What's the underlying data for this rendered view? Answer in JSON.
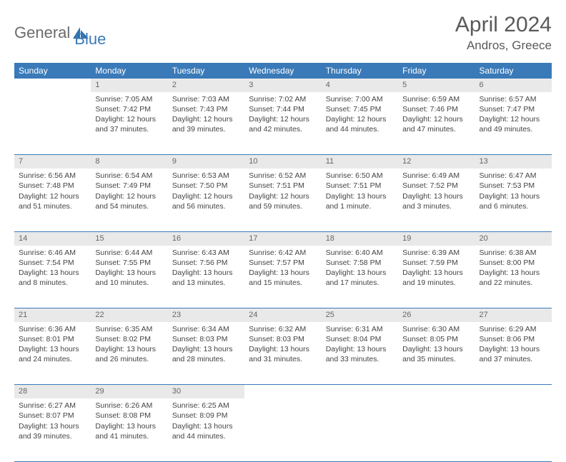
{
  "brand": {
    "text1": "General",
    "text2": "Blue"
  },
  "title": "April 2024",
  "location": "Andros, Greece",
  "colors": {
    "header_bg": "#3a7ab8",
    "header_text": "#ffffff",
    "daynum_bg": "#e9e9e9",
    "daynum_text": "#666666",
    "rule": "#3a7ab8",
    "body_text": "#444444",
    "title_text": "#5a5a5a"
  },
  "weekdays": [
    "Sunday",
    "Monday",
    "Tuesday",
    "Wednesday",
    "Thursday",
    "Friday",
    "Saturday"
  ],
  "weeks": [
    [
      null,
      {
        "n": "1",
        "sr": "7:05 AM",
        "ss": "7:42 PM",
        "dl": "12 hours and 37 minutes."
      },
      {
        "n": "2",
        "sr": "7:03 AM",
        "ss": "7:43 PM",
        "dl": "12 hours and 39 minutes."
      },
      {
        "n": "3",
        "sr": "7:02 AM",
        "ss": "7:44 PM",
        "dl": "12 hours and 42 minutes."
      },
      {
        "n": "4",
        "sr": "7:00 AM",
        "ss": "7:45 PM",
        "dl": "12 hours and 44 minutes."
      },
      {
        "n": "5",
        "sr": "6:59 AM",
        "ss": "7:46 PM",
        "dl": "12 hours and 47 minutes."
      },
      {
        "n": "6",
        "sr": "6:57 AM",
        "ss": "7:47 PM",
        "dl": "12 hours and 49 minutes."
      }
    ],
    [
      {
        "n": "7",
        "sr": "6:56 AM",
        "ss": "7:48 PM",
        "dl": "12 hours and 51 minutes."
      },
      {
        "n": "8",
        "sr": "6:54 AM",
        "ss": "7:49 PM",
        "dl": "12 hours and 54 minutes."
      },
      {
        "n": "9",
        "sr": "6:53 AM",
        "ss": "7:50 PM",
        "dl": "12 hours and 56 minutes."
      },
      {
        "n": "10",
        "sr": "6:52 AM",
        "ss": "7:51 PM",
        "dl": "12 hours and 59 minutes."
      },
      {
        "n": "11",
        "sr": "6:50 AM",
        "ss": "7:51 PM",
        "dl": "13 hours and 1 minute."
      },
      {
        "n": "12",
        "sr": "6:49 AM",
        "ss": "7:52 PM",
        "dl": "13 hours and 3 minutes."
      },
      {
        "n": "13",
        "sr": "6:47 AM",
        "ss": "7:53 PM",
        "dl": "13 hours and 6 minutes."
      }
    ],
    [
      {
        "n": "14",
        "sr": "6:46 AM",
        "ss": "7:54 PM",
        "dl": "13 hours and 8 minutes."
      },
      {
        "n": "15",
        "sr": "6:44 AM",
        "ss": "7:55 PM",
        "dl": "13 hours and 10 minutes."
      },
      {
        "n": "16",
        "sr": "6:43 AM",
        "ss": "7:56 PM",
        "dl": "13 hours and 13 minutes."
      },
      {
        "n": "17",
        "sr": "6:42 AM",
        "ss": "7:57 PM",
        "dl": "13 hours and 15 minutes."
      },
      {
        "n": "18",
        "sr": "6:40 AM",
        "ss": "7:58 PM",
        "dl": "13 hours and 17 minutes."
      },
      {
        "n": "19",
        "sr": "6:39 AM",
        "ss": "7:59 PM",
        "dl": "13 hours and 19 minutes."
      },
      {
        "n": "20",
        "sr": "6:38 AM",
        "ss": "8:00 PM",
        "dl": "13 hours and 22 minutes."
      }
    ],
    [
      {
        "n": "21",
        "sr": "6:36 AM",
        "ss": "8:01 PM",
        "dl": "13 hours and 24 minutes."
      },
      {
        "n": "22",
        "sr": "6:35 AM",
        "ss": "8:02 PM",
        "dl": "13 hours and 26 minutes."
      },
      {
        "n": "23",
        "sr": "6:34 AM",
        "ss": "8:03 PM",
        "dl": "13 hours and 28 minutes."
      },
      {
        "n": "24",
        "sr": "6:32 AM",
        "ss": "8:03 PM",
        "dl": "13 hours and 31 minutes."
      },
      {
        "n": "25",
        "sr": "6:31 AM",
        "ss": "8:04 PM",
        "dl": "13 hours and 33 minutes."
      },
      {
        "n": "26",
        "sr": "6:30 AM",
        "ss": "8:05 PM",
        "dl": "13 hours and 35 minutes."
      },
      {
        "n": "27",
        "sr": "6:29 AM",
        "ss": "8:06 PM",
        "dl": "13 hours and 37 minutes."
      }
    ],
    [
      {
        "n": "28",
        "sr": "6:27 AM",
        "ss": "8:07 PM",
        "dl": "13 hours and 39 minutes."
      },
      {
        "n": "29",
        "sr": "6:26 AM",
        "ss": "8:08 PM",
        "dl": "13 hours and 41 minutes."
      },
      {
        "n": "30",
        "sr": "6:25 AM",
        "ss": "8:09 PM",
        "dl": "13 hours and 44 minutes."
      },
      null,
      null,
      null,
      null
    ]
  ],
  "labels": {
    "sunrise": "Sunrise: ",
    "sunset": "Sunset: ",
    "daylight": "Daylight: "
  }
}
